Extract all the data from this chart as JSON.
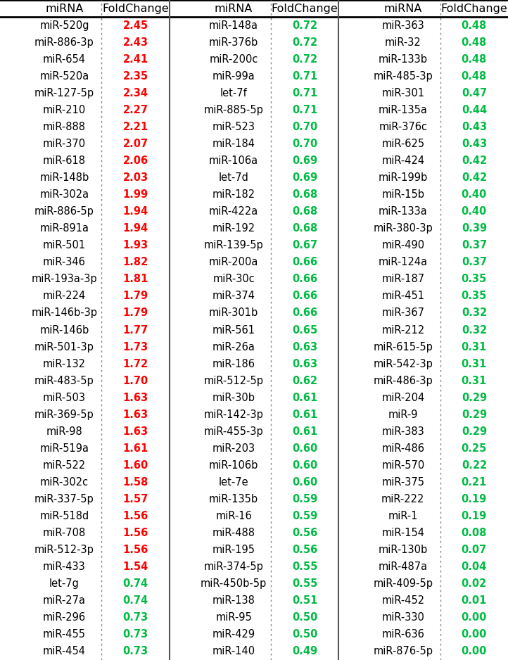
{
  "col1": [
    [
      "miR-520g",
      "2.45",
      "red"
    ],
    [
      "miR-886-3p",
      "2.43",
      "red"
    ],
    [
      "miR-654",
      "2.41",
      "red"
    ],
    [
      "miR-520a",
      "2.35",
      "red"
    ],
    [
      "miR-127-5p",
      "2.34",
      "red"
    ],
    [
      "miR-210",
      "2.27",
      "red"
    ],
    [
      "miR-888",
      "2.21",
      "red"
    ],
    [
      "miR-370",
      "2.07",
      "red"
    ],
    [
      "miR-618",
      "2.06",
      "red"
    ],
    [
      "miR-148b",
      "2.03",
      "red"
    ],
    [
      "miR-302a",
      "1.99",
      "red"
    ],
    [
      "miR-886-5p",
      "1.94",
      "red"
    ],
    [
      "miR-891a",
      "1.94",
      "red"
    ],
    [
      "miR-501",
      "1.93",
      "red"
    ],
    [
      "miR-346",
      "1.82",
      "red"
    ],
    [
      "miR-193a-3p",
      "1.81",
      "red"
    ],
    [
      "miR-224",
      "1.79",
      "red"
    ],
    [
      "miR-146b-3p",
      "1.79",
      "red"
    ],
    [
      "miR-146b",
      "1.77",
      "red"
    ],
    [
      "miR-501-3p",
      "1.73",
      "red"
    ],
    [
      "miR-132",
      "1.72",
      "red"
    ],
    [
      "miR-483-5p",
      "1.70",
      "red"
    ],
    [
      "miR-503",
      "1.63",
      "red"
    ],
    [
      "miR-369-5p",
      "1.63",
      "red"
    ],
    [
      "miR-98",
      "1.63",
      "red"
    ],
    [
      "miR-519a",
      "1.61",
      "red"
    ],
    [
      "miR-522",
      "1.60",
      "red"
    ],
    [
      "miR-302c",
      "1.58",
      "red"
    ],
    [
      "miR-337-5p",
      "1.57",
      "red"
    ],
    [
      "miR-518d",
      "1.56",
      "red"
    ],
    [
      "miR-708",
      "1.56",
      "red"
    ],
    [
      "miR-512-3p",
      "1.56",
      "red"
    ],
    [
      "miR-433",
      "1.54",
      "red"
    ],
    [
      "let-7g",
      "0.74",
      "green"
    ],
    [
      "miR-27a",
      "0.74",
      "green"
    ],
    [
      "miR-296",
      "0.73",
      "green"
    ],
    [
      "miR-455",
      "0.73",
      "green"
    ],
    [
      "miR-454",
      "0.73",
      "green"
    ]
  ],
  "col2": [
    [
      "miR-148a",
      "0.72",
      "green"
    ],
    [
      "miR-376b",
      "0.72",
      "green"
    ],
    [
      "miR-200c",
      "0.72",
      "green"
    ],
    [
      "miR-99a",
      "0.71",
      "green"
    ],
    [
      "let-7f",
      "0.71",
      "green"
    ],
    [
      "miR-885-5p",
      "0.71",
      "green"
    ],
    [
      "miR-523",
      "0.70",
      "green"
    ],
    [
      "miR-184",
      "0.70",
      "green"
    ],
    [
      "miR-106a",
      "0.69",
      "green"
    ],
    [
      "let-7d",
      "0.69",
      "green"
    ],
    [
      "miR-182",
      "0.68",
      "green"
    ],
    [
      "miR-422a",
      "0.68",
      "green"
    ],
    [
      "miR-192",
      "0.68",
      "green"
    ],
    [
      "miR-139-5p",
      "0.67",
      "green"
    ],
    [
      "miR-200a",
      "0.66",
      "green"
    ],
    [
      "miR-30c",
      "0.66",
      "green"
    ],
    [
      "miR-374",
      "0.66",
      "green"
    ],
    [
      "miR-301b",
      "0.66",
      "green"
    ],
    [
      "miR-561",
      "0.65",
      "green"
    ],
    [
      "miR-26a",
      "0.63",
      "green"
    ],
    [
      "miR-186",
      "0.63",
      "green"
    ],
    [
      "miR-512-5p",
      "0.62",
      "green"
    ],
    [
      "miR-30b",
      "0.61",
      "green"
    ],
    [
      "miR-142-3p",
      "0.61",
      "green"
    ],
    [
      "miR-455-3p",
      "0.61",
      "green"
    ],
    [
      "miR-203",
      "0.60",
      "green"
    ],
    [
      "miR-106b",
      "0.60",
      "green"
    ],
    [
      "let-7e",
      "0.60",
      "green"
    ],
    [
      "miR-135b",
      "0.59",
      "green"
    ],
    [
      "miR-16",
      "0.59",
      "green"
    ],
    [
      "miR-488",
      "0.56",
      "green"
    ],
    [
      "miR-195",
      "0.56",
      "green"
    ],
    [
      "miR-374-5p",
      "0.55",
      "green"
    ],
    [
      "miR-450b-5p",
      "0.55",
      "green"
    ],
    [
      "miR-138",
      "0.51",
      "green"
    ],
    [
      "miR-95",
      "0.50",
      "green"
    ],
    [
      "miR-429",
      "0.50",
      "green"
    ],
    [
      "miR-140",
      "0.49",
      "green"
    ]
  ],
  "col3": [
    [
      "miR-363",
      "0.48",
      "green"
    ],
    [
      "miR-32",
      "0.48",
      "green"
    ],
    [
      "miR-133b",
      "0.48",
      "green"
    ],
    [
      "miR-485-3p",
      "0.48",
      "green"
    ],
    [
      "miR-301",
      "0.47",
      "green"
    ],
    [
      "miR-135a",
      "0.44",
      "green"
    ],
    [
      "miR-376c",
      "0.43",
      "green"
    ],
    [
      "miR-625",
      "0.43",
      "green"
    ],
    [
      "miR-424",
      "0.42",
      "green"
    ],
    [
      "miR-199b",
      "0.42",
      "green"
    ],
    [
      "miR-15b",
      "0.40",
      "green"
    ],
    [
      "miR-133a",
      "0.40",
      "green"
    ],
    [
      "miR-380-3p",
      "0.39",
      "green"
    ],
    [
      "miR-490",
      "0.37",
      "green"
    ],
    [
      "miR-124a",
      "0.37",
      "green"
    ],
    [
      "miR-187",
      "0.35",
      "green"
    ],
    [
      "miR-451",
      "0.35",
      "green"
    ],
    [
      "miR-367",
      "0.32",
      "green"
    ],
    [
      "miR-212",
      "0.32",
      "green"
    ],
    [
      "miR-615-5p",
      "0.31",
      "green"
    ],
    [
      "miR-542-3p",
      "0.31",
      "green"
    ],
    [
      "miR-486-3p",
      "0.31",
      "green"
    ],
    [
      "miR-204",
      "0.29",
      "green"
    ],
    [
      "miR-9",
      "0.29",
      "green"
    ],
    [
      "miR-383",
      "0.29",
      "green"
    ],
    [
      "miR-486",
      "0.25",
      "green"
    ],
    [
      "miR-570",
      "0.22",
      "green"
    ],
    [
      "miR-375",
      "0.21",
      "green"
    ],
    [
      "miR-222",
      "0.19",
      "green"
    ],
    [
      "miR-1",
      "0.19",
      "green"
    ],
    [
      "miR-154",
      "0.08",
      "green"
    ],
    [
      "miR-130b",
      "0.07",
      "green"
    ],
    [
      "miR-487a",
      "0.04",
      "green"
    ],
    [
      "miR-409-5p",
      "0.02",
      "green"
    ],
    [
      "miR-452",
      "0.01",
      "green"
    ],
    [
      "miR-330",
      "0.00",
      "green"
    ],
    [
      "miR-636",
      "0.00",
      "green"
    ],
    [
      "miR-876-5p",
      "0.00",
      "green"
    ]
  ],
  "bg_color": "#ffffff",
  "text_color": "#000000",
  "red_color": "#ff0000",
  "green_color": "#00bb44",
  "font_size": 10.5,
  "header_font_size": 11.5,
  "n_data_rows": 38,
  "fig_width": 7.22,
  "fig_height": 9.38,
  "dpi": 100
}
